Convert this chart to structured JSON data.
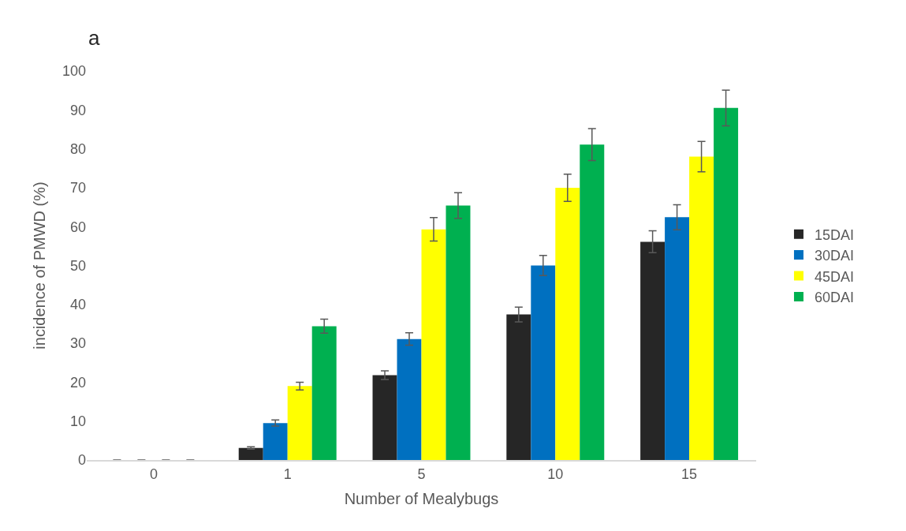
{
  "chart_data": {
    "type": "bar",
    "xlabel": "Number of Mealybugs",
    "ylabel": "incidence of PMWD (%)",
    "annotations": [
      "a"
    ],
    "categories": [
      "0",
      "1",
      "5",
      "10",
      "15"
    ],
    "series": [
      {
        "name": "15DAI",
        "color": "#262626",
        "values": [
          0,
          3.1,
          21.8,
          37.4,
          56.1
        ],
        "errors": [
          null,
          0.3,
          1.1,
          1.9,
          2.8
        ]
      },
      {
        "name": "30DAI",
        "color": "#0070c0",
        "values": [
          0,
          9.5,
          31.1,
          50,
          62.4
        ],
        "errors": [
          null,
          0.8,
          1.6,
          2.6,
          3.2
        ]
      },
      {
        "name": "45DAI",
        "color": "#ffff00",
        "values": [
          0,
          19,
          59.3,
          70,
          78
        ],
        "errors": [
          null,
          1,
          3,
          3.5,
          3.9
        ]
      },
      {
        "name": "60DAI",
        "color": "#00b050",
        "values": [
          0,
          34.4,
          65.4,
          81.1,
          90.5
        ],
        "errors": [
          null,
          1.8,
          3.3,
          4.1,
          4.6
        ]
      }
    ],
    "ylim": [
      0,
      100
    ],
    "yticks": [
      0,
      10,
      20,
      30,
      40,
      50,
      60,
      70,
      80,
      90,
      100
    ],
    "legend": "right"
  }
}
